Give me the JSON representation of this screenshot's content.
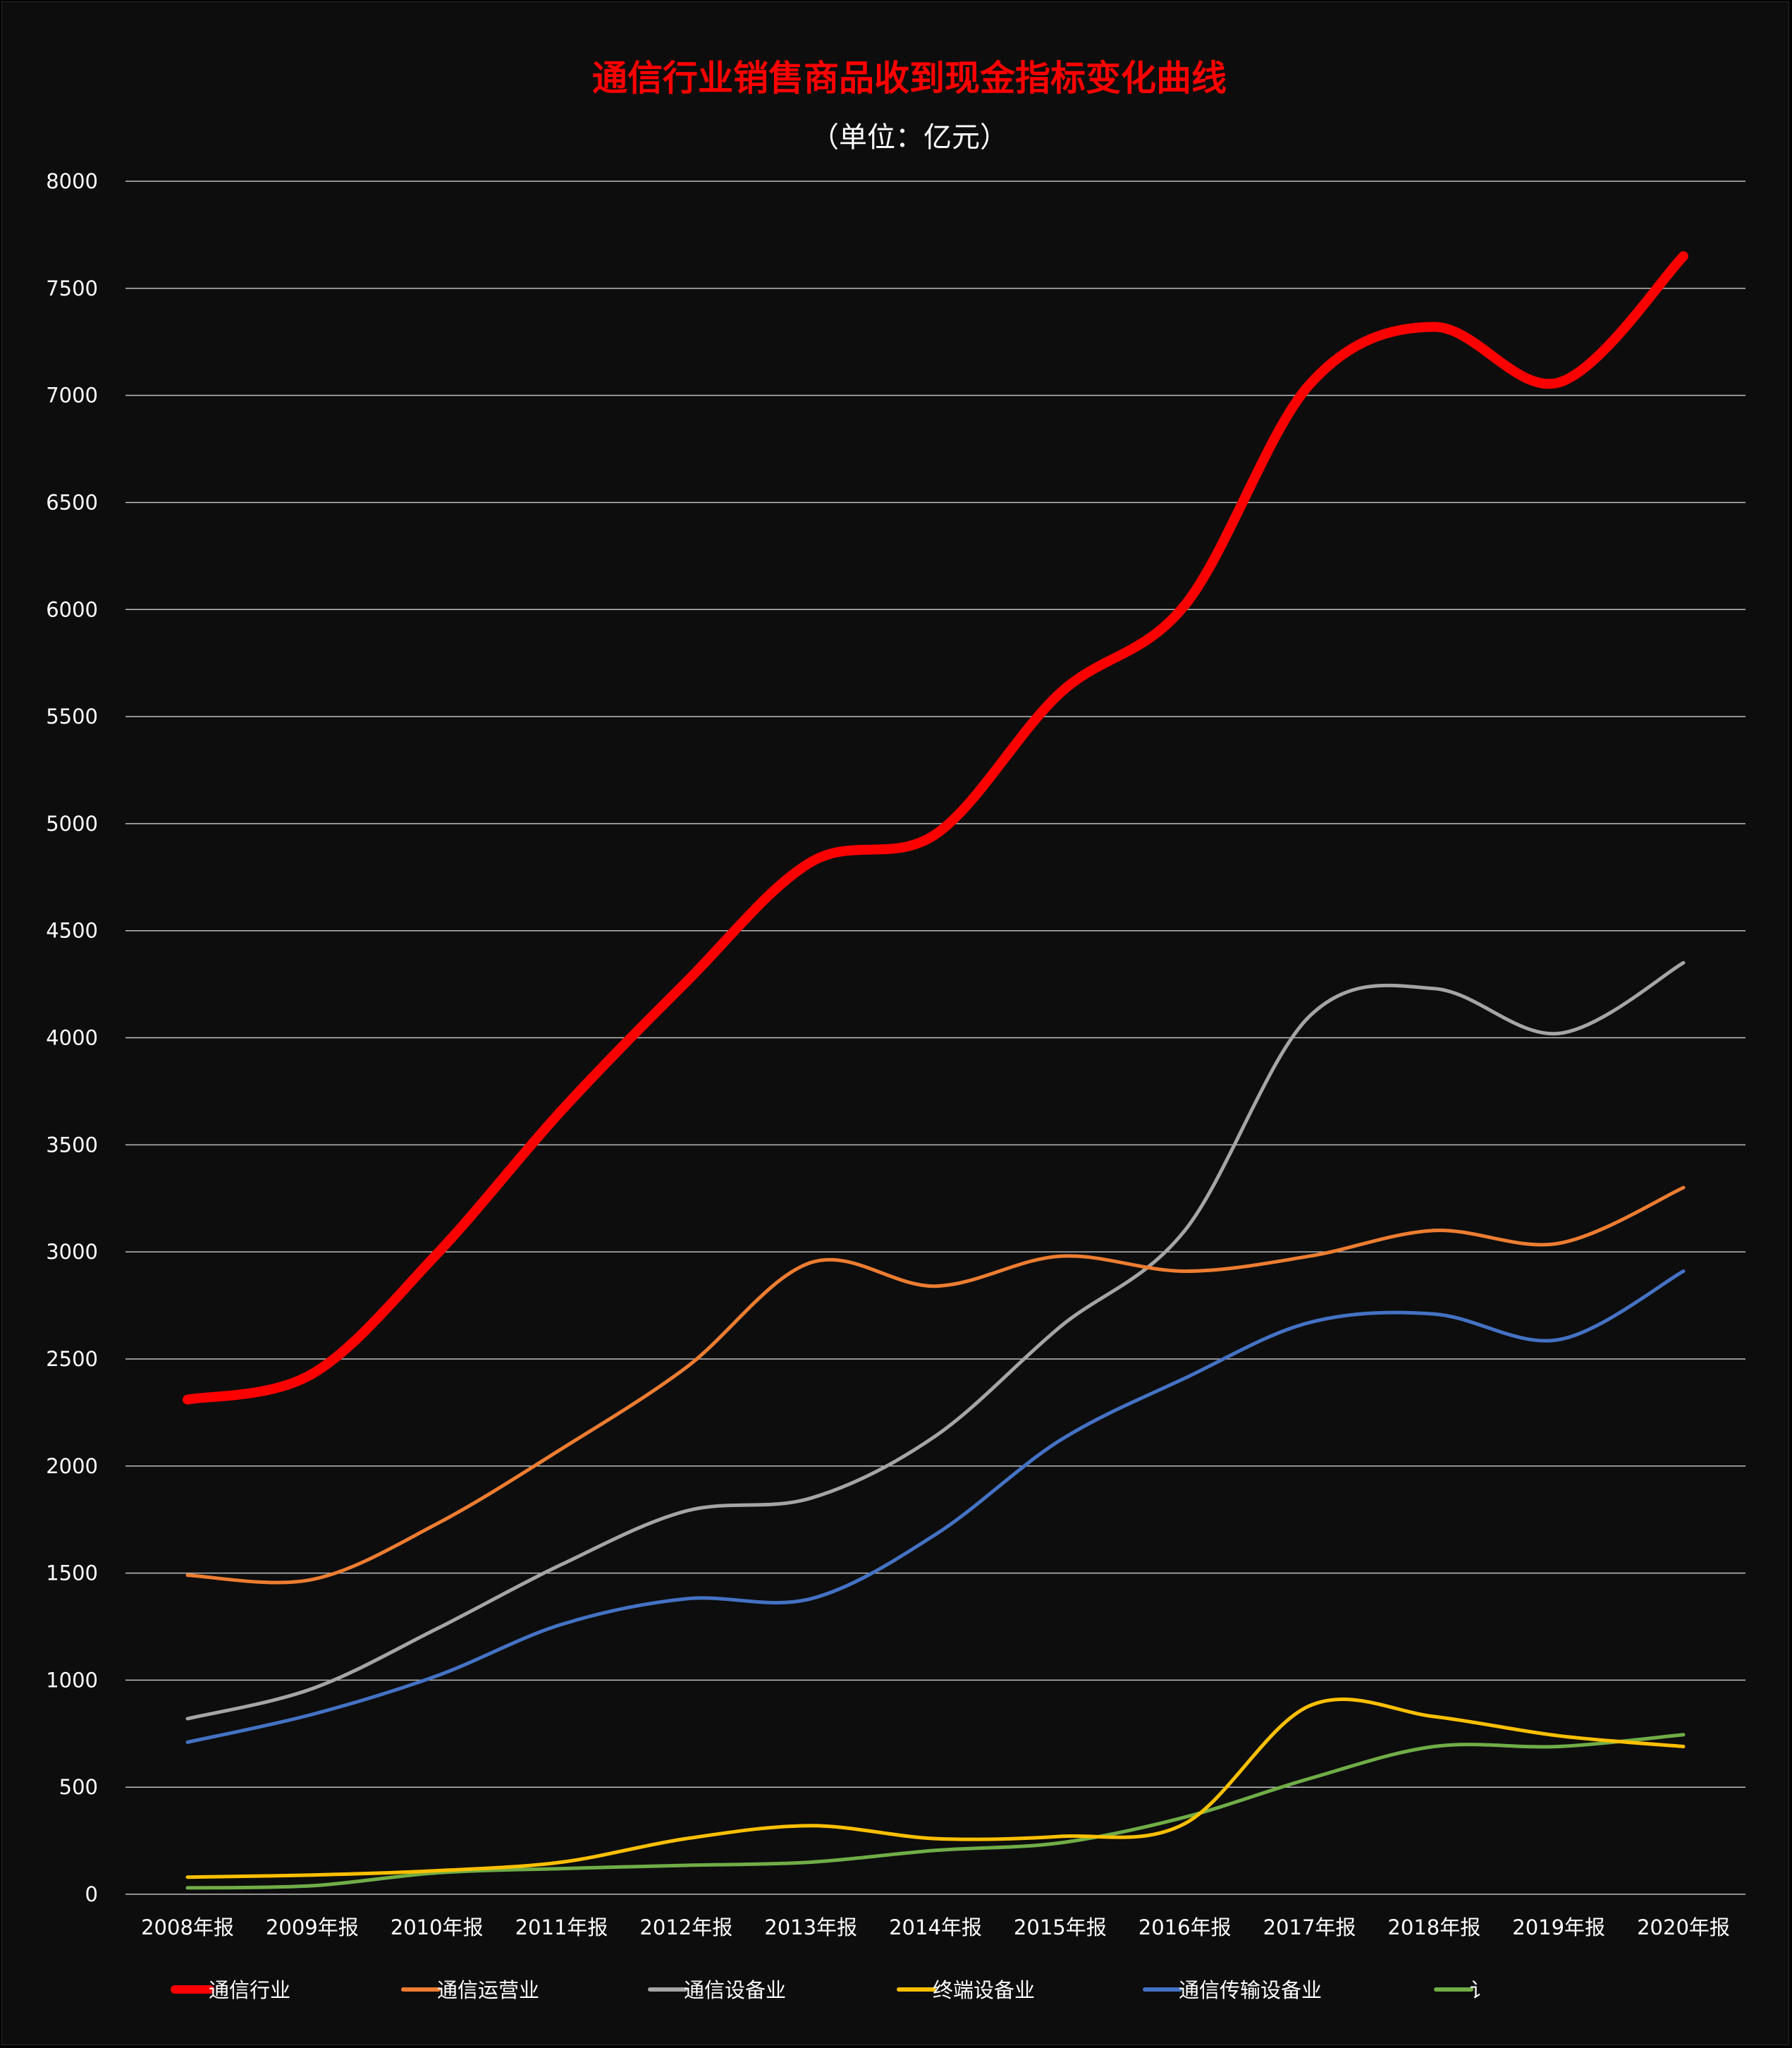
{
  "chart_data": {
    "type": "line",
    "title": "通信行业销售商品收到现金指标变化曲线",
    "subtitle": "（单位：亿元）",
    "categories": [
      "2008年报",
      "2009年报",
      "2010年报",
      "2011年报",
      "2012年报",
      "2013年报",
      "2014年报",
      "2015年报",
      "2016年报",
      "2017年报",
      "2018年报",
      "2019年报",
      "2020年报"
    ],
    "ylim": [
      0,
      8000
    ],
    "yticks": [
      0,
      500,
      1000,
      1500,
      2000,
      2500,
      3000,
      3500,
      4000,
      4500,
      5000,
      5500,
      6000,
      6500,
      7000,
      7500,
      8000
    ],
    "grid": true,
    "legend_position": "bottom",
    "smooth": true,
    "series": [
      {
        "name": "通信行业",
        "color": "#ff0000",
        "values": [
          2310,
          2430,
          2990,
          3660,
          4260,
          4820,
          4950,
          5610,
          6020,
          7050,
          7320,
          7060,
          7650
        ]
      },
      {
        "name": "通信运营业",
        "color": "#ed7d31",
        "values": [
          1490,
          1470,
          1730,
          2080,
          2460,
          2950,
          2840,
          2980,
          2910,
          2980,
          3100,
          3040,
          3300
        ]
      },
      {
        "name": "通信设备业",
        "color": "#a5a5a5",
        "values": [
          820,
          960,
          1240,
          1540,
          1790,
          1850,
          2140,
          2650,
          3100,
          4100,
          4230,
          4020,
          4350
        ]
      },
      {
        "name": "终端设备业",
        "color": "#ffc000",
        "values": [
          80,
          90,
          110,
          150,
          260,
          320,
          260,
          270,
          330,
          880,
          830,
          740,
          690
        ]
      },
      {
        "name": "通信传输设备业",
        "color": "#4472c4",
        "values": [
          710,
          840,
          1020,
          1260,
          1380,
          1380,
          1680,
          2120,
          2410,
          2670,
          2710,
          2590,
          2910
        ]
      },
      {
        "name": "",
        "legend_label_visible": "讠",
        "color": "#70ad47",
        "values": [
          30,
          40,
          100,
          120,
          135,
          150,
          205,
          240,
          360,
          540,
          690,
          690,
          745
        ]
      }
    ]
  },
  "colors": {
    "background": "#0d0d0d",
    "gridline": "#bfbfbf",
    "title": "#ff0000",
    "subtitle": "#ffffff",
    "text": "#ffffff"
  }
}
